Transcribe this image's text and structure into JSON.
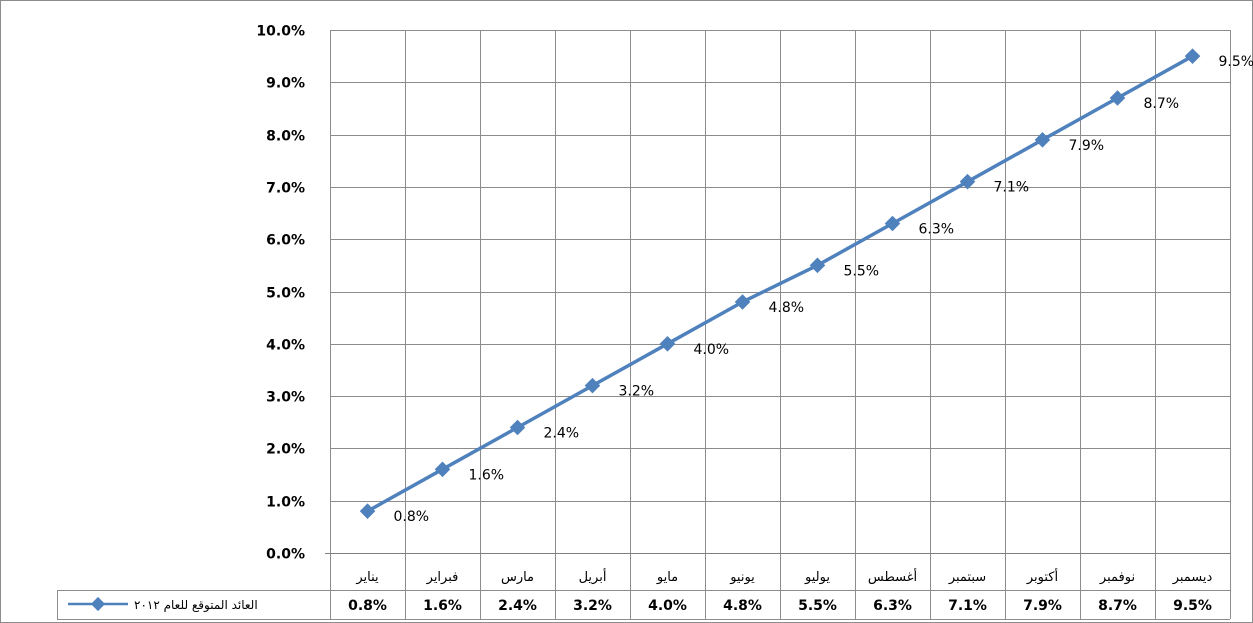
{
  "chart_data": {
    "type": "line",
    "title": "",
    "xlabel": "",
    "ylabel": "",
    "categories": [
      "يناير",
      "فبراير",
      "مارس",
      "أبريل",
      "مايو",
      "يونيو",
      "يوليو",
      "أغسطس",
      "سبتمبر",
      "أكتوبر",
      "نوفمبر",
      "ديسمبر"
    ],
    "series": [
      {
        "name": "العائد المتوقع للعام ٢٠١٢",
        "values": [
          0.8,
          1.6,
          2.4,
          3.2,
          4.0,
          4.8,
          5.5,
          6.3,
          7.1,
          7.9,
          8.7,
          9.5
        ],
        "labels": [
          "0.8%",
          "1.6%",
          "2.4%",
          "3.2%",
          "4.0%",
          "4.8%",
          "5.5%",
          "6.3%",
          "7.1%",
          "7.9%",
          "8.7%",
          "9.5%"
        ],
        "color": "#4f81bd"
      }
    ],
    "yticks": [
      "0.0%",
      "1.0%",
      "2.0%",
      "3.0%",
      "4.0%",
      "5.0%",
      "6.0%",
      "7.0%",
      "8.0%",
      "9.0%",
      "10.0%"
    ],
    "ylim": [
      0,
      10
    ],
    "grid": true,
    "data_table": true,
    "legend_position": "data-table-left"
  }
}
